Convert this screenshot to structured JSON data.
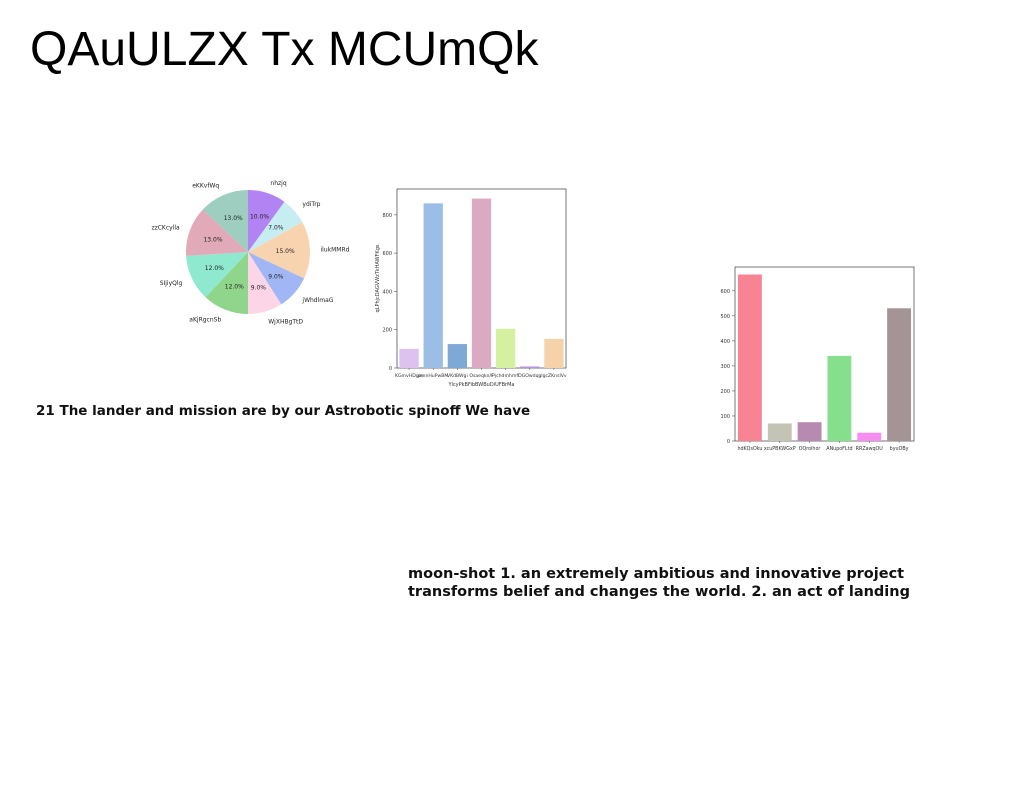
{
  "title": "QAuULZX Tx MCUmQk",
  "texts": [
    "21 The lander and mission are by our Astrobotic spinoff We have",
    "moon-shot 1. an extremely ambitious and innovative project",
    "transforms belief and changes the world. 2. an act of landing"
  ],
  "chart_data": [
    {
      "type": "pie",
      "labels": [
        "nhzjq",
        "ydiTrp",
        "ilukMMRd",
        "jWhdlmaG",
        "WjXHBgTtD",
        "aKjRgcnSb",
        "SIjiyQlg",
        "zzCKcylla",
        "eKKvfWq"
      ],
      "values": [
        10.0,
        7.0,
        15.0,
        9.0,
        9.0,
        12.0,
        12.0,
        13.0,
        13.0
      ],
      "value_labels": [
        "10.0%",
        "7.0%",
        "15.0%",
        "9.0%",
        "9.0%",
        "12.0%",
        "12.0%",
        "13.0%",
        "13.0%"
      ],
      "colors": [
        "#b283f3",
        "#c6edf2",
        "#f8d3b0",
        "#a1b6f5",
        "#fcd6e6",
        "#8fd58b",
        "#8ee9cf",
        "#e2a9b9",
        "#9ecec0"
      ],
      "start": "top",
      "direction": "clockwise"
    },
    {
      "type": "bar",
      "categories": [
        "KGmvHDgm",
        "pmnHuPwBM",
        "VKdBWgi",
        "Osaeqkn/F",
        "Pjchdmhmfl",
        "OGOwdqg",
        "IgcZKnslVv"
      ],
      "values": [
        100,
        860,
        125,
        885,
        205,
        8,
        152
      ],
      "colors": [
        "#ddc1ee",
        "#9bbde6",
        "#7ea9d6",
        "#dbaac2",
        "#d4f0a0",
        "#b993e3",
        "#f6d2ab"
      ],
      "xlabel": "YlcyPkBFibBWBuDiUFBrMa",
      "ylabel": "qLPhjcDAGVWzTkHAWFKgs",
      "yticks": [
        0,
        200,
        400,
        600,
        800
      ],
      "ylim": [
        0,
        935
      ]
    },
    {
      "type": "bar",
      "categories": [
        "hdKQsOku",
        "xcuPBKWGxP",
        "OQroihor",
        "ANupoFLtd",
        "RRZawqOU",
        "byuOBy"
      ],
      "values": [
        665,
        70,
        75,
        340,
        33,
        530
      ],
      "colors": [
        "#f78393",
        "#c3c3b6",
        "#b78ab1",
        "#86df8c",
        "#f68ef1",
        "#a49496"
      ],
      "xlabel": "",
      "ylabel": "",
      "yticks": [
        0,
        100,
        200,
        300,
        400,
        500,
        600
      ],
      "ylim": [
        0,
        695
      ]
    }
  ]
}
